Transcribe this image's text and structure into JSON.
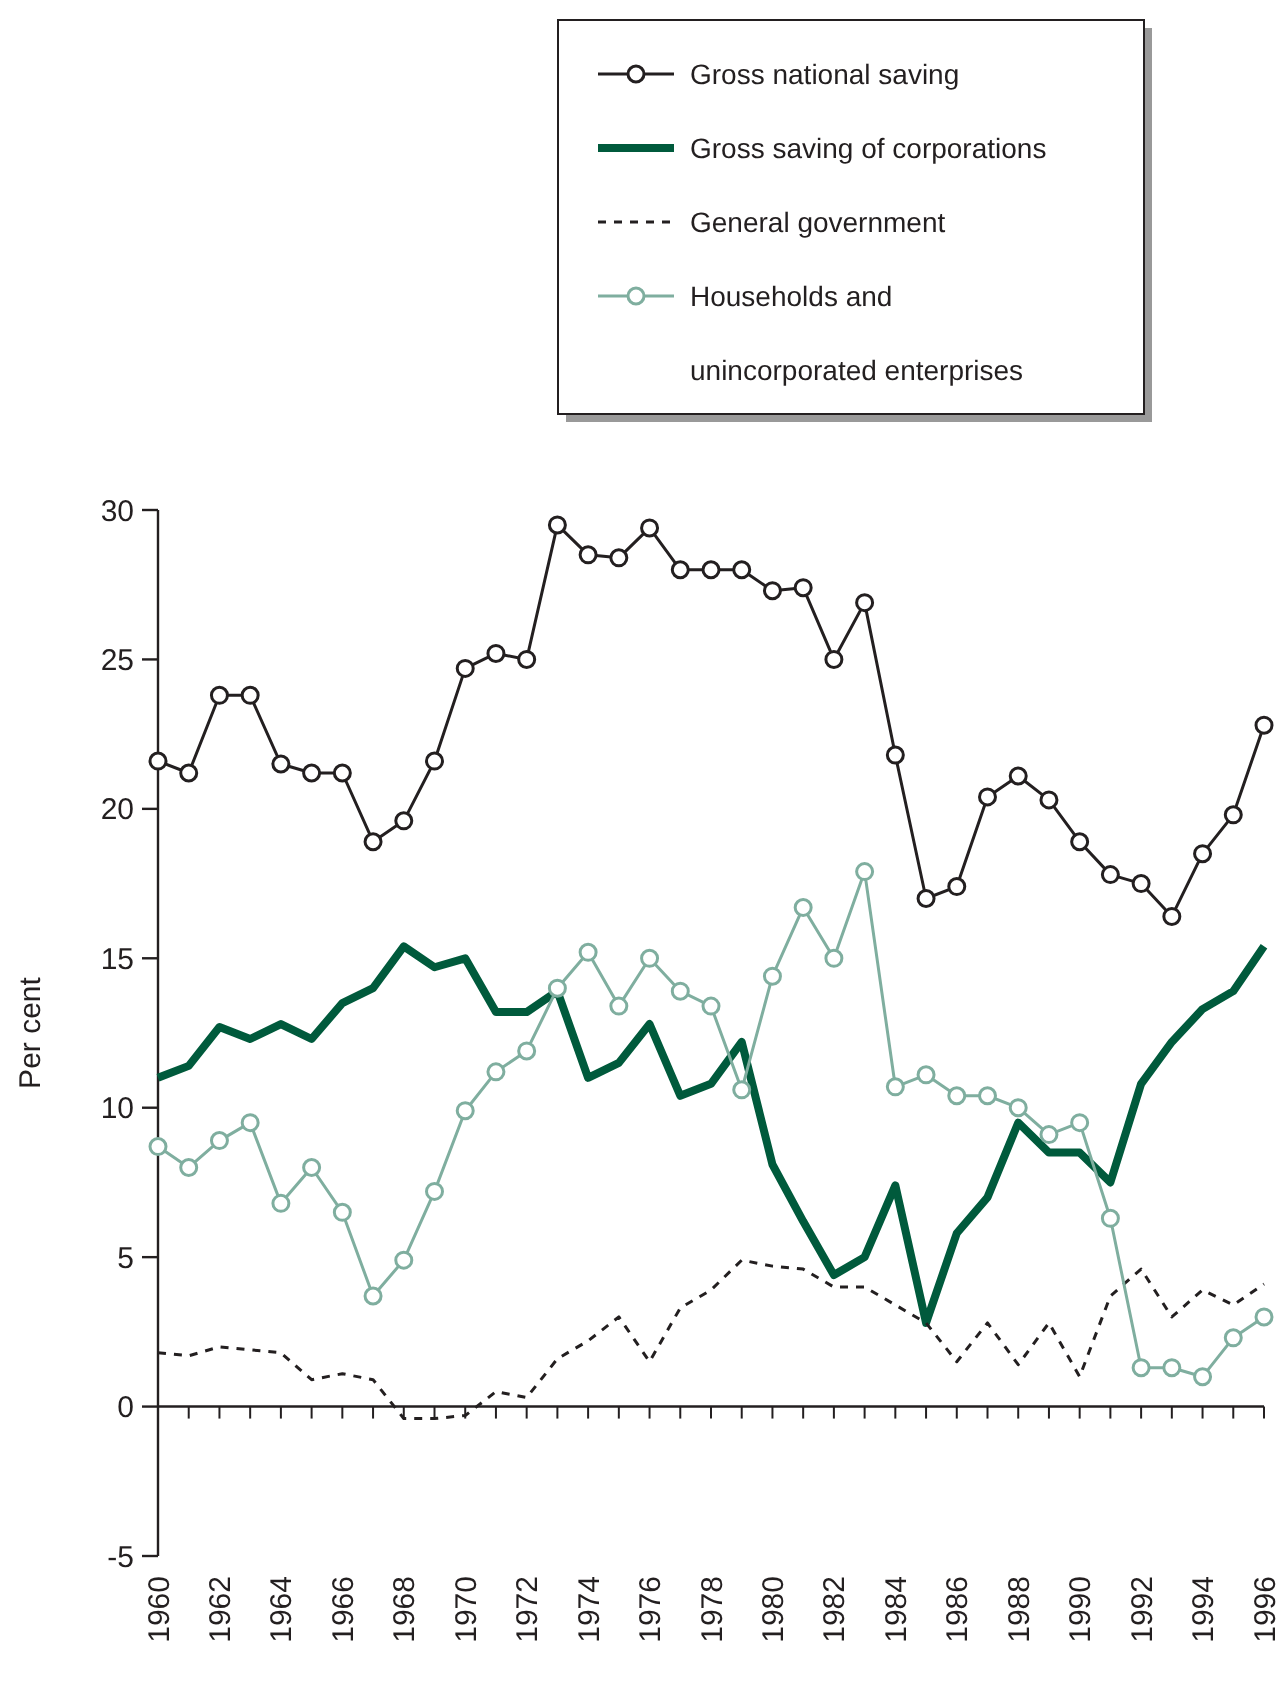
{
  "chart_data": {
    "type": "line",
    "ylabel": "Per cent",
    "legend": "top right",
    "x": [
      1960,
      1961,
      1962,
      1963,
      1964,
      1965,
      1966,
      1967,
      1968,
      1969,
      1970,
      1971,
      1972,
      1973,
      1974,
      1975,
      1976,
      1977,
      1978,
      1979,
      1980,
      1981,
      1982,
      1983,
      1984,
      1985,
      1986,
      1987,
      1988,
      1989,
      1990,
      1991,
      1992,
      1993,
      1994,
      1995,
      1996
    ],
    "xlim": [
      1960,
      1996
    ],
    "xticks": [
      1960,
      {
        "value": 1961,
        "label": null
      },
      1962,
      {
        "value": 1963,
        "label": null
      },
      1964,
      {
        "value": 1965,
        "label": null
      },
      1966,
      {
        "value": 1967,
        "label": null
      },
      1968,
      {
        "value": 1969,
        "label": null
      },
      1970,
      {
        "value": 1971,
        "label": null
      },
      1972,
      {
        "value": 1973,
        "label": null
      },
      1974,
      {
        "value": 1975,
        "label": null
      },
      1976,
      {
        "value": 1977,
        "label": null
      },
      1978,
      {
        "value": 1979,
        "label": null
      },
      1980,
      {
        "value": 1981,
        "label": null
      },
      1982,
      {
        "value": 1983,
        "label": null
      },
      1984,
      {
        "value": 1985,
        "label": null
      },
      1986,
      {
        "value": 1987,
        "label": null
      },
      1988,
      {
        "value": 1989,
        "label": null
      },
      1990,
      {
        "value": 1991,
        "label": null
      },
      1992,
      {
        "value": 1993,
        "label": null
      },
      1994,
      {
        "value": 1995,
        "label": null
      },
      1996
    ],
    "ylim": [
      -5,
      30
    ],
    "yticks": [
      -5,
      0,
      5,
      10,
      15,
      20,
      25,
      30
    ],
    "series": [
      {
        "name": "Gross national saving",
        "color": "#231f20",
        "marker": "circle",
        "line_style": "solid",
        "values": [
          21.6,
          21.2,
          23.8,
          23.8,
          21.5,
          21.2,
          21.2,
          18.9,
          19.6,
          21.6,
          24.7,
          25.2,
          25.0,
          29.5,
          28.5,
          28.4,
          29.4,
          28.0,
          28.0,
          28.0,
          27.3,
          27.4,
          25.0,
          26.9,
          21.8,
          17.0,
          17.4,
          20.4,
          21.1,
          20.3,
          18.9,
          17.8,
          17.5,
          16.4,
          18.5,
          19.8,
          22.8
        ]
      },
      {
        "name": "Gross saving of corporations",
        "color": "#005a3c",
        "marker": "none",
        "line_style": "solid",
        "values": [
          11.0,
          11.4,
          12.7,
          12.3,
          12.8,
          12.3,
          13.5,
          14.0,
          15.4,
          14.7,
          15.0,
          13.2,
          13.2,
          13.9,
          11.0,
          11.5,
          12.8,
          10.4,
          10.8,
          12.2,
          8.1,
          6.2,
          4.4,
          5.0,
          7.4,
          2.8,
          5.8,
          7.0,
          9.5,
          8.5,
          8.5,
          7.5,
          10.8,
          12.2,
          13.3,
          13.9,
          15.4
        ]
      },
      {
        "name": "General government",
        "color": "#231f20",
        "marker": "none",
        "line_style": "dashed",
        "values": [
          1.8,
          1.7,
          2.0,
          1.9,
          1.8,
          0.9,
          1.1,
          0.9,
          -0.4,
          -0.4,
          -0.3,
          0.5,
          0.3,
          1.6,
          2.2,
          3.0,
          1.5,
          3.3,
          3.9,
          4.9,
          4.7,
          4.6,
          4.0,
          4.0,
          3.4,
          2.8,
          1.5,
          2.8,
          1.4,
          2.8,
          1.0,
          3.7,
          4.6,
          3.0,
          3.9,
          3.4,
          4.1
        ]
      },
      {
        "name": "Households and unincorporated enterprises",
        "color": "#7fae9f",
        "marker": "circle",
        "line_style": "solid",
        "values": [
          8.7,
          8.0,
          8.9,
          9.5,
          6.8,
          8.0,
          6.5,
          3.7,
          4.9,
          7.2,
          9.9,
          11.2,
          11.9,
          14.0,
          15.2,
          13.4,
          15.0,
          13.9,
          13.4,
          10.6,
          14.4,
          16.7,
          15.0,
          17.9,
          10.7,
          11.1,
          10.4,
          10.4,
          10.0,
          9.1,
          9.5,
          6.3,
          1.3,
          1.3,
          1.0,
          2.3,
          3.0
        ]
      }
    ]
  }
}
